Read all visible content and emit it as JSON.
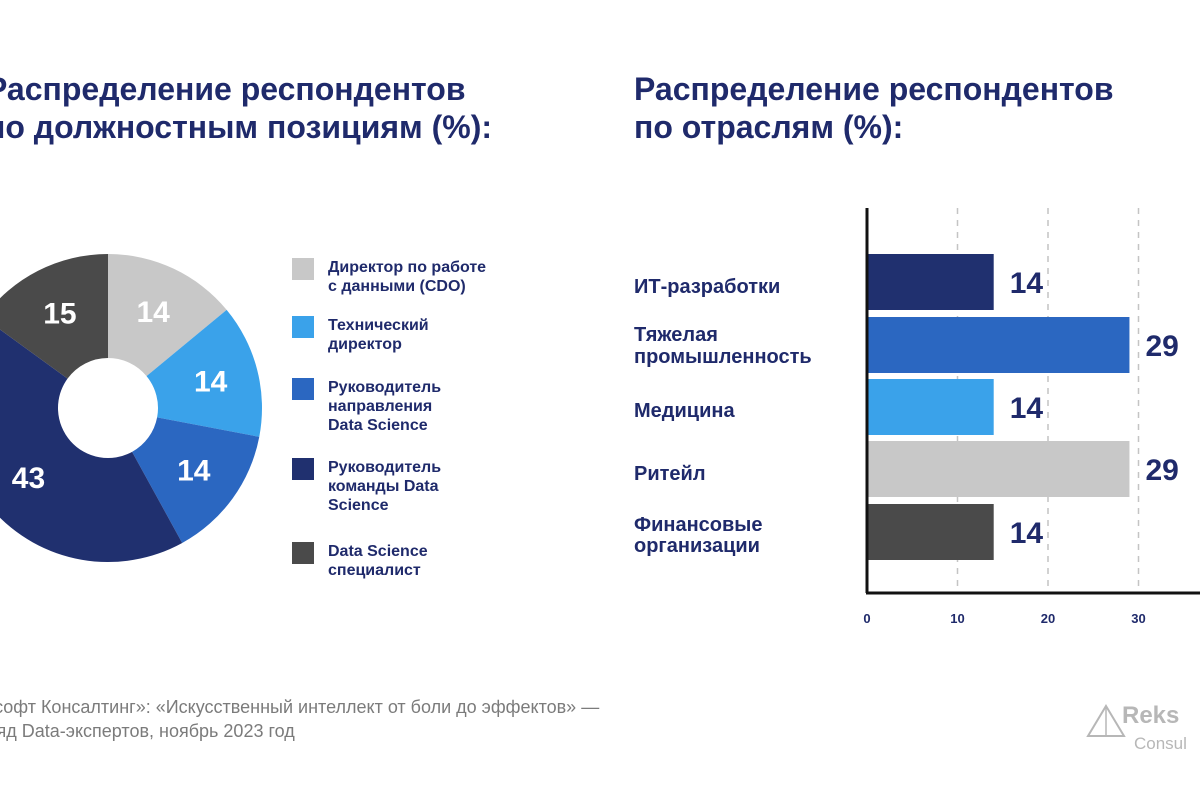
{
  "left_chart": {
    "title_line1": "Распределение респондентов",
    "title_line2": "по должностным позициям (%):"
  },
  "right_chart": {
    "title_line1": "Распределение респондентов",
    "title_line2": "по отраслям (%):"
  },
  "chart_data": [
    {
      "type": "pie",
      "donut": true,
      "title": "Распределение респондентов по должностным позициям (%):",
      "legend_position": "right",
      "slices": [
        {
          "label": "Директор по работе с данными (CDO)",
          "legend_text": "Директор по работе\nс данными (CDO)",
          "value": 14,
          "value_label": "14",
          "color": "#c8c8c8"
        },
        {
          "label": "Технический директор",
          "legend_text": "Технический\nдиректор",
          "value": 14,
          "value_label": "14",
          "color": "#3aa2ea"
        },
        {
          "label": "Руководитель направления Data Science",
          "legend_text": "Руководитель\nнаправления\nData Science",
          "value": 14,
          "value_label": "14",
          "color": "#2b67c1"
        },
        {
          "label": "Руководитель команды Data Science",
          "legend_text": "Руководитель\nкоманды Data\nScience",
          "value": 43,
          "value_label": "43",
          "color": "#20306f"
        },
        {
          "label": "Data Science специалист",
          "legend_text": "Data Science\nспециалист",
          "value": 15,
          "value_label": "15",
          "color": "#4a4a4a"
        }
      ]
    },
    {
      "type": "bar",
      "orientation": "horizontal",
      "title": "Распределение респондентов по отраслям (%):",
      "xlim": [
        0,
        35
      ],
      "xticks": [
        0,
        10,
        20,
        30
      ],
      "grid": "dashed vertical",
      "bars": [
        {
          "label": "ИТ-разработки",
          "value": 14,
          "value_label": "14",
          "color": "#20306f"
        },
        {
          "label": "Тяжелая промышленность",
          "value": 29,
          "value_label": "29",
          "color": "#2b67c1"
        },
        {
          "label": "Медицина",
          "value": 14,
          "value_label": "14",
          "color": "#3aa2ea"
        },
        {
          "label": "Ритейл",
          "value": 29,
          "value_label": "29",
          "color": "#c8c8c8"
        },
        {
          "label": "Финансовые организации",
          "value": 14,
          "value_label": "14",
          "color": "#4a4a4a"
        }
      ]
    }
  ],
  "source": {
    "line1": "ксофт Консалтинг»: «Искусственный интеллект от боли до эффектов» —",
    "line2": "ляд Data-экспертов, ноябрь 2023 год"
  },
  "logo": {
    "text": "Reks",
    "subtext": "Consul",
    "icon": "triangle-logo-icon"
  }
}
